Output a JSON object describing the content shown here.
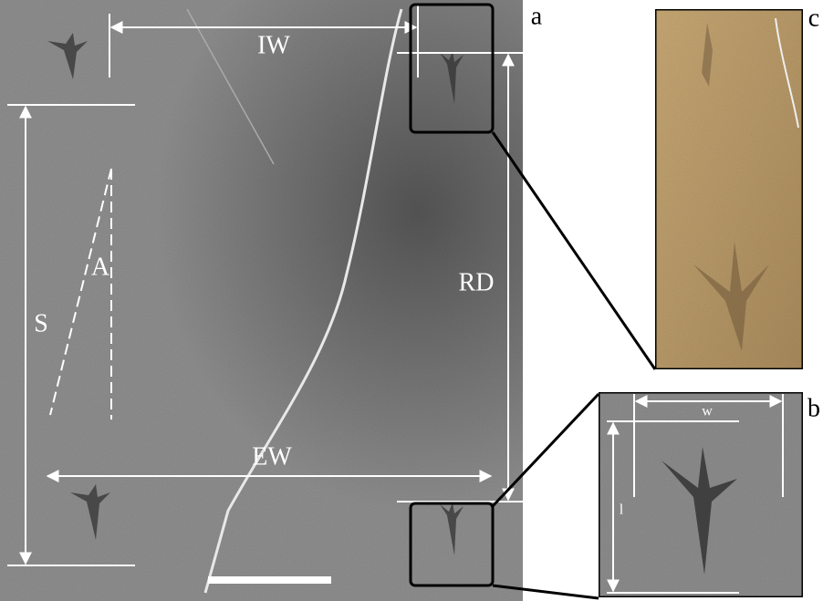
{
  "panels": [
    {
      "label": "a"
    },
    {
      "label": "b"
    },
    {
      "label": "c"
    }
  ],
  "measurements": {
    "interdigital_width": "IW",
    "rotation_distance": "RD",
    "external_width": "EW",
    "stride": "S",
    "angle": "A"
  },
  "inset_measurements": {
    "width": "w",
    "length": "l"
  }
}
